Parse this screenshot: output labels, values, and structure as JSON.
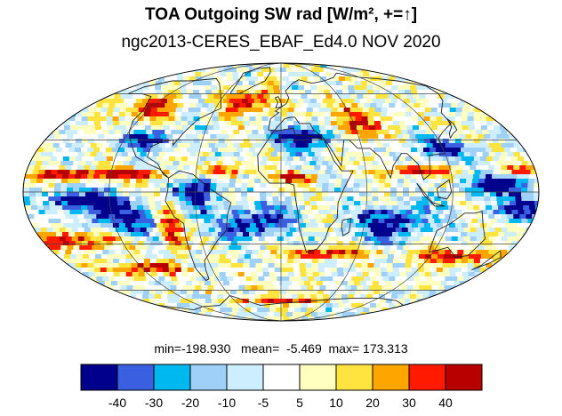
{
  "figure": {
    "title": "TOA Outgoing SW rad [W/m², +=↑]",
    "subtitle": "ngc2013-CERES_EBAF_Ed4.0 NOV 2020"
  },
  "stats": {
    "min_label": "min=",
    "min": "-198.930",
    "mean_label": "mean=",
    "mean": "-5.469",
    "max_label": "max=",
    "max": "173.313"
  },
  "colorbar": {
    "colors": [
      "#00008c",
      "#3a5fe0",
      "#00b8f0",
      "#9fd0f8",
      "#cdeefe",
      "#ffffff",
      "#ffffc0",
      "#ffe440",
      "#ffa500",
      "#ff1a00",
      "#b80000"
    ],
    "tick_labels": [
      "-40",
      "-30",
      "-20",
      "-10",
      "-5",
      "5",
      "10",
      "20",
      "30",
      "40"
    ]
  },
  "map": {
    "projection": "Mollweide",
    "variable": "TOA outgoing shortwave radiation difference",
    "units": "W/m²"
  }
}
